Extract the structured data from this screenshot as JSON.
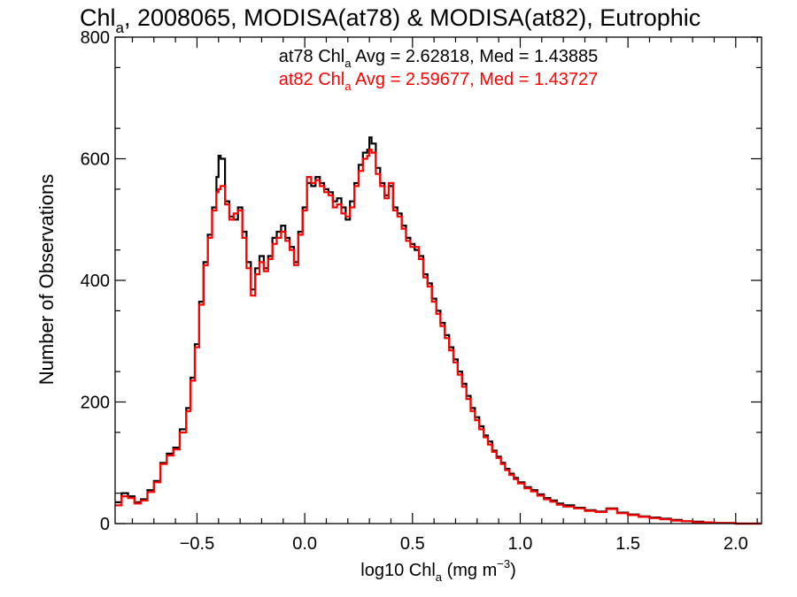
{
  "chart_data": {
    "type": "histogram-step",
    "title": {
      "prefix": "Chl",
      "sub": "a",
      "suffix": ", 2008065, MODISA(at78) & MODISA(at82), Eutrophic"
    },
    "xlabel": {
      "prefix": "log10 Chl",
      "sub": "a",
      "middle": " (mg m",
      "sup": "−3",
      "suffix": ")"
    },
    "ylabel": "Number of Observations",
    "xlim": [
      -0.88,
      2.12
    ],
    "ylim": [
      0,
      800
    ],
    "xticks": [
      -0.5,
      0.0,
      0.5,
      1.0,
      1.5,
      2.0
    ],
    "xtick_labels": [
      "−0.5",
      "0.0",
      "0.5",
      "1.0",
      "1.5",
      "2.0"
    ],
    "yticks": [
      0,
      200,
      400,
      600,
      800
    ],
    "ytick_labels": [
      "0",
      "200",
      "400",
      "600",
      "800"
    ],
    "annotations": [
      {
        "prefix": "at78 Chl",
        "sub": "a",
        "suffix": " Avg = 2.62818, Med = 1.43885",
        "color": "#000000"
      },
      {
        "prefix": "at82 Chl",
        "sub": "a",
        "suffix": " Avg = 2.59677, Med = 1.43727",
        "color": "#ff0000"
      }
    ],
    "series": [
      {
        "color": "#000000",
        "points": [
          [
            -0.88,
            35
          ],
          [
            -0.85,
            50
          ],
          [
            -0.82,
            45
          ],
          [
            -0.79,
            35
          ],
          [
            -0.76,
            40
          ],
          [
            -0.73,
            55
          ],
          [
            -0.7,
            70
          ],
          [
            -0.67,
            100
          ],
          [
            -0.64,
            115
          ],
          [
            -0.61,
            125
          ],
          [
            -0.58,
            155
          ],
          [
            -0.55,
            190
          ],
          [
            -0.53,
            240
          ],
          [
            -0.51,
            295
          ],
          [
            -0.49,
            365
          ],
          [
            -0.47,
            430
          ],
          [
            -0.45,
            475
          ],
          [
            -0.43,
            520
          ],
          [
            -0.41,
            570
          ],
          [
            -0.4,
            605
          ],
          [
            -0.39,
            600
          ],
          [
            -0.37,
            530
          ],
          [
            -0.35,
            505
          ],
          [
            -0.33,
            500
          ],
          [
            -0.31,
            520
          ],
          [
            -0.29,
            480
          ],
          [
            -0.27,
            430
          ],
          [
            -0.25,
            385
          ],
          [
            -0.23,
            420
          ],
          [
            -0.21,
            440
          ],
          [
            -0.19,
            420
          ],
          [
            -0.17,
            440
          ],
          [
            -0.15,
            470
          ],
          [
            -0.13,
            480
          ],
          [
            -0.11,
            490
          ],
          [
            -0.09,
            470
          ],
          [
            -0.07,
            455
          ],
          [
            -0.05,
            430
          ],
          [
            -0.03,
            480
          ],
          [
            -0.01,
            520
          ],
          [
            0.01,
            560
          ],
          [
            0.03,
            555
          ],
          [
            0.05,
            570
          ],
          [
            0.07,
            560
          ],
          [
            0.09,
            550
          ],
          [
            0.11,
            545
          ],
          [
            0.13,
            530
          ],
          [
            0.15,
            535
          ],
          [
            0.17,
            520
          ],
          [
            0.19,
            500
          ],
          [
            0.21,
            530
          ],
          [
            0.23,
            560
          ],
          [
            0.25,
            590
          ],
          [
            0.27,
            610
          ],
          [
            0.29,
            615
          ],
          [
            0.3,
            635
          ],
          [
            0.31,
            625
          ],
          [
            0.33,
            585
          ],
          [
            0.35,
            560
          ],
          [
            0.37,
            540
          ],
          [
            0.39,
            555
          ],
          [
            0.41,
            520
          ],
          [
            0.43,
            510
          ],
          [
            0.45,
            490
          ],
          [
            0.47,
            470
          ],
          [
            0.49,
            460
          ],
          [
            0.51,
            450
          ],
          [
            0.53,
            440
          ],
          [
            0.55,
            410
          ],
          [
            0.57,
            395
          ],
          [
            0.59,
            370
          ],
          [
            0.61,
            350
          ],
          [
            0.63,
            330
          ],
          [
            0.65,
            310
          ],
          [
            0.67,
            290
          ],
          [
            0.69,
            270
          ],
          [
            0.71,
            250
          ],
          [
            0.73,
            230
          ],
          [
            0.75,
            210
          ],
          [
            0.77,
            190
          ],
          [
            0.79,
            175
          ],
          [
            0.81,
            160
          ],
          [
            0.83,
            145
          ],
          [
            0.85,
            135
          ],
          [
            0.87,
            120
          ],
          [
            0.89,
            110
          ],
          [
            0.91,
            100
          ],
          [
            0.93,
            90
          ],
          [
            0.95,
            82
          ],
          [
            0.97,
            75
          ],
          [
            0.99,
            68
          ],
          [
            1.02,
            60
          ],
          [
            1.05,
            55
          ],
          [
            1.08,
            48
          ],
          [
            1.11,
            42
          ],
          [
            1.14,
            38
          ],
          [
            1.17,
            33
          ],
          [
            1.2,
            30
          ],
          [
            1.25,
            26
          ],
          [
            1.3,
            22
          ],
          [
            1.35,
            20
          ],
          [
            1.4,
            25
          ],
          [
            1.45,
            18
          ],
          [
            1.5,
            15
          ],
          [
            1.55,
            12
          ],
          [
            1.6,
            10
          ],
          [
            1.65,
            8
          ],
          [
            1.7,
            6
          ],
          [
            1.75,
            4
          ],
          [
            1.8,
            3
          ],
          [
            1.85,
            2
          ],
          [
            1.9,
            1
          ],
          [
            1.95,
            1
          ],
          [
            2.0,
            0
          ],
          [
            2.12,
            0
          ]
        ]
      },
      {
        "color": "#ff0000",
        "points": [
          [
            -0.88,
            30
          ],
          [
            -0.85,
            45
          ],
          [
            -0.82,
            42
          ],
          [
            -0.79,
            33
          ],
          [
            -0.76,
            38
          ],
          [
            -0.73,
            52
          ],
          [
            -0.7,
            68
          ],
          [
            -0.67,
            98
          ],
          [
            -0.64,
            112
          ],
          [
            -0.61,
            122
          ],
          [
            -0.58,
            150
          ],
          [
            -0.55,
            185
          ],
          [
            -0.53,
            235
          ],
          [
            -0.51,
            290
          ],
          [
            -0.49,
            360
          ],
          [
            -0.47,
            425
          ],
          [
            -0.45,
            470
          ],
          [
            -0.43,
            515
          ],
          [
            -0.41,
            545
          ],
          [
            -0.4,
            550
          ],
          [
            -0.39,
            555
          ],
          [
            -0.37,
            525
          ],
          [
            -0.35,
            500
          ],
          [
            -0.33,
            510
          ],
          [
            -0.31,
            515
          ],
          [
            -0.29,
            470
          ],
          [
            -0.27,
            420
          ],
          [
            -0.25,
            375
          ],
          [
            -0.23,
            410
          ],
          [
            -0.21,
            430
          ],
          [
            -0.19,
            415
          ],
          [
            -0.17,
            435
          ],
          [
            -0.15,
            460
          ],
          [
            -0.13,
            470
          ],
          [
            -0.11,
            480
          ],
          [
            -0.09,
            465
          ],
          [
            -0.07,
            450
          ],
          [
            -0.05,
            425
          ],
          [
            -0.03,
            475
          ],
          [
            -0.01,
            515
          ],
          [
            0.01,
            570
          ],
          [
            0.03,
            560
          ],
          [
            0.05,
            565
          ],
          [
            0.07,
            555
          ],
          [
            0.09,
            545
          ],
          [
            0.11,
            540
          ],
          [
            0.13,
            520
          ],
          [
            0.15,
            525
          ],
          [
            0.17,
            510
          ],
          [
            0.19,
            505
          ],
          [
            0.21,
            520
          ],
          [
            0.23,
            555
          ],
          [
            0.25,
            580
          ],
          [
            0.27,
            600
          ],
          [
            0.29,
            605
          ],
          [
            0.3,
            615
          ],
          [
            0.31,
            610
          ],
          [
            0.33,
            575
          ],
          [
            0.35,
            555
          ],
          [
            0.37,
            535
          ],
          [
            0.39,
            560
          ],
          [
            0.41,
            515
          ],
          [
            0.43,
            505
          ],
          [
            0.45,
            485
          ],
          [
            0.47,
            465
          ],
          [
            0.49,
            455
          ],
          [
            0.51,
            455
          ],
          [
            0.53,
            435
          ],
          [
            0.55,
            405
          ],
          [
            0.57,
            390
          ],
          [
            0.59,
            365
          ],
          [
            0.61,
            345
          ],
          [
            0.63,
            325
          ],
          [
            0.65,
            305
          ],
          [
            0.67,
            285
          ],
          [
            0.69,
            265
          ],
          [
            0.71,
            245
          ],
          [
            0.73,
            225
          ],
          [
            0.75,
            205
          ],
          [
            0.77,
            185
          ],
          [
            0.79,
            170
          ],
          [
            0.81,
            155
          ],
          [
            0.83,
            142
          ],
          [
            0.85,
            130
          ],
          [
            0.87,
            118
          ],
          [
            0.89,
            108
          ],
          [
            0.91,
            98
          ],
          [
            0.93,
            88
          ],
          [
            0.95,
            80
          ],
          [
            0.97,
            73
          ],
          [
            0.99,
            66
          ],
          [
            1.02,
            58
          ],
          [
            1.05,
            53
          ],
          [
            1.08,
            46
          ],
          [
            1.11,
            40
          ],
          [
            1.14,
            36
          ],
          [
            1.17,
            31
          ],
          [
            1.2,
            28
          ],
          [
            1.25,
            25
          ],
          [
            1.3,
            21
          ],
          [
            1.35,
            19
          ],
          [
            1.4,
            24
          ],
          [
            1.45,
            17
          ],
          [
            1.5,
            14
          ],
          [
            1.55,
            11
          ],
          [
            1.6,
            9
          ],
          [
            1.65,
            7
          ],
          [
            1.7,
            5
          ],
          [
            1.75,
            4
          ],
          [
            1.8,
            2
          ],
          [
            1.85,
            2
          ],
          [
            1.9,
            1
          ],
          [
            1.95,
            1
          ],
          [
            2.0,
            0
          ],
          [
            2.12,
            0
          ]
        ]
      }
    ]
  }
}
